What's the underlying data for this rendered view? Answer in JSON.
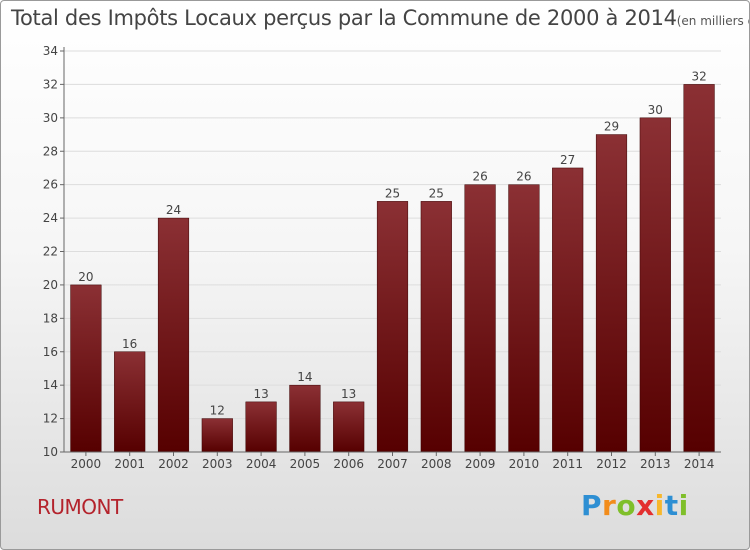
{
  "title": "Total des Impôts Locaux perçus par la Commune de 2000 à 2014",
  "unit_label": "(en milliers d'€)",
  "commune": "RUMONT",
  "brand": {
    "letters": [
      "P",
      "r",
      "o",
      "x",
      "i",
      "t",
      "i"
    ],
    "colors": [
      "#2e8fd3",
      "#f28c1b",
      "#7fbf2a",
      "#e32f2f",
      "#f7b72c",
      "#2e8fd3",
      "#7fbf2a"
    ]
  },
  "colors": {
    "bar_top": "#8b3034",
    "bar_bottom": "#560000",
    "axis": "#666666",
    "grid": "#dddddd"
  },
  "chart_data": {
    "type": "bar",
    "title": "Total des Impôts Locaux perçus par la Commune de 2000 à 2014",
    "xlabel": "",
    "ylabel": "",
    "ylim": [
      10,
      34
    ],
    "yticks": [
      10,
      12,
      14,
      16,
      18,
      20,
      22,
      24,
      26,
      28,
      30,
      32,
      34
    ],
    "categories": [
      "2000",
      "2001",
      "2002",
      "2003",
      "2004",
      "2005",
      "2006",
      "2007",
      "2008",
      "2009",
      "2010",
      "2011",
      "2012",
      "2013",
      "2014"
    ],
    "values": [
      20,
      16,
      24,
      12,
      13,
      14,
      13,
      25,
      25,
      26,
      26,
      27,
      29,
      30,
      32
    ],
    "grid": true
  }
}
